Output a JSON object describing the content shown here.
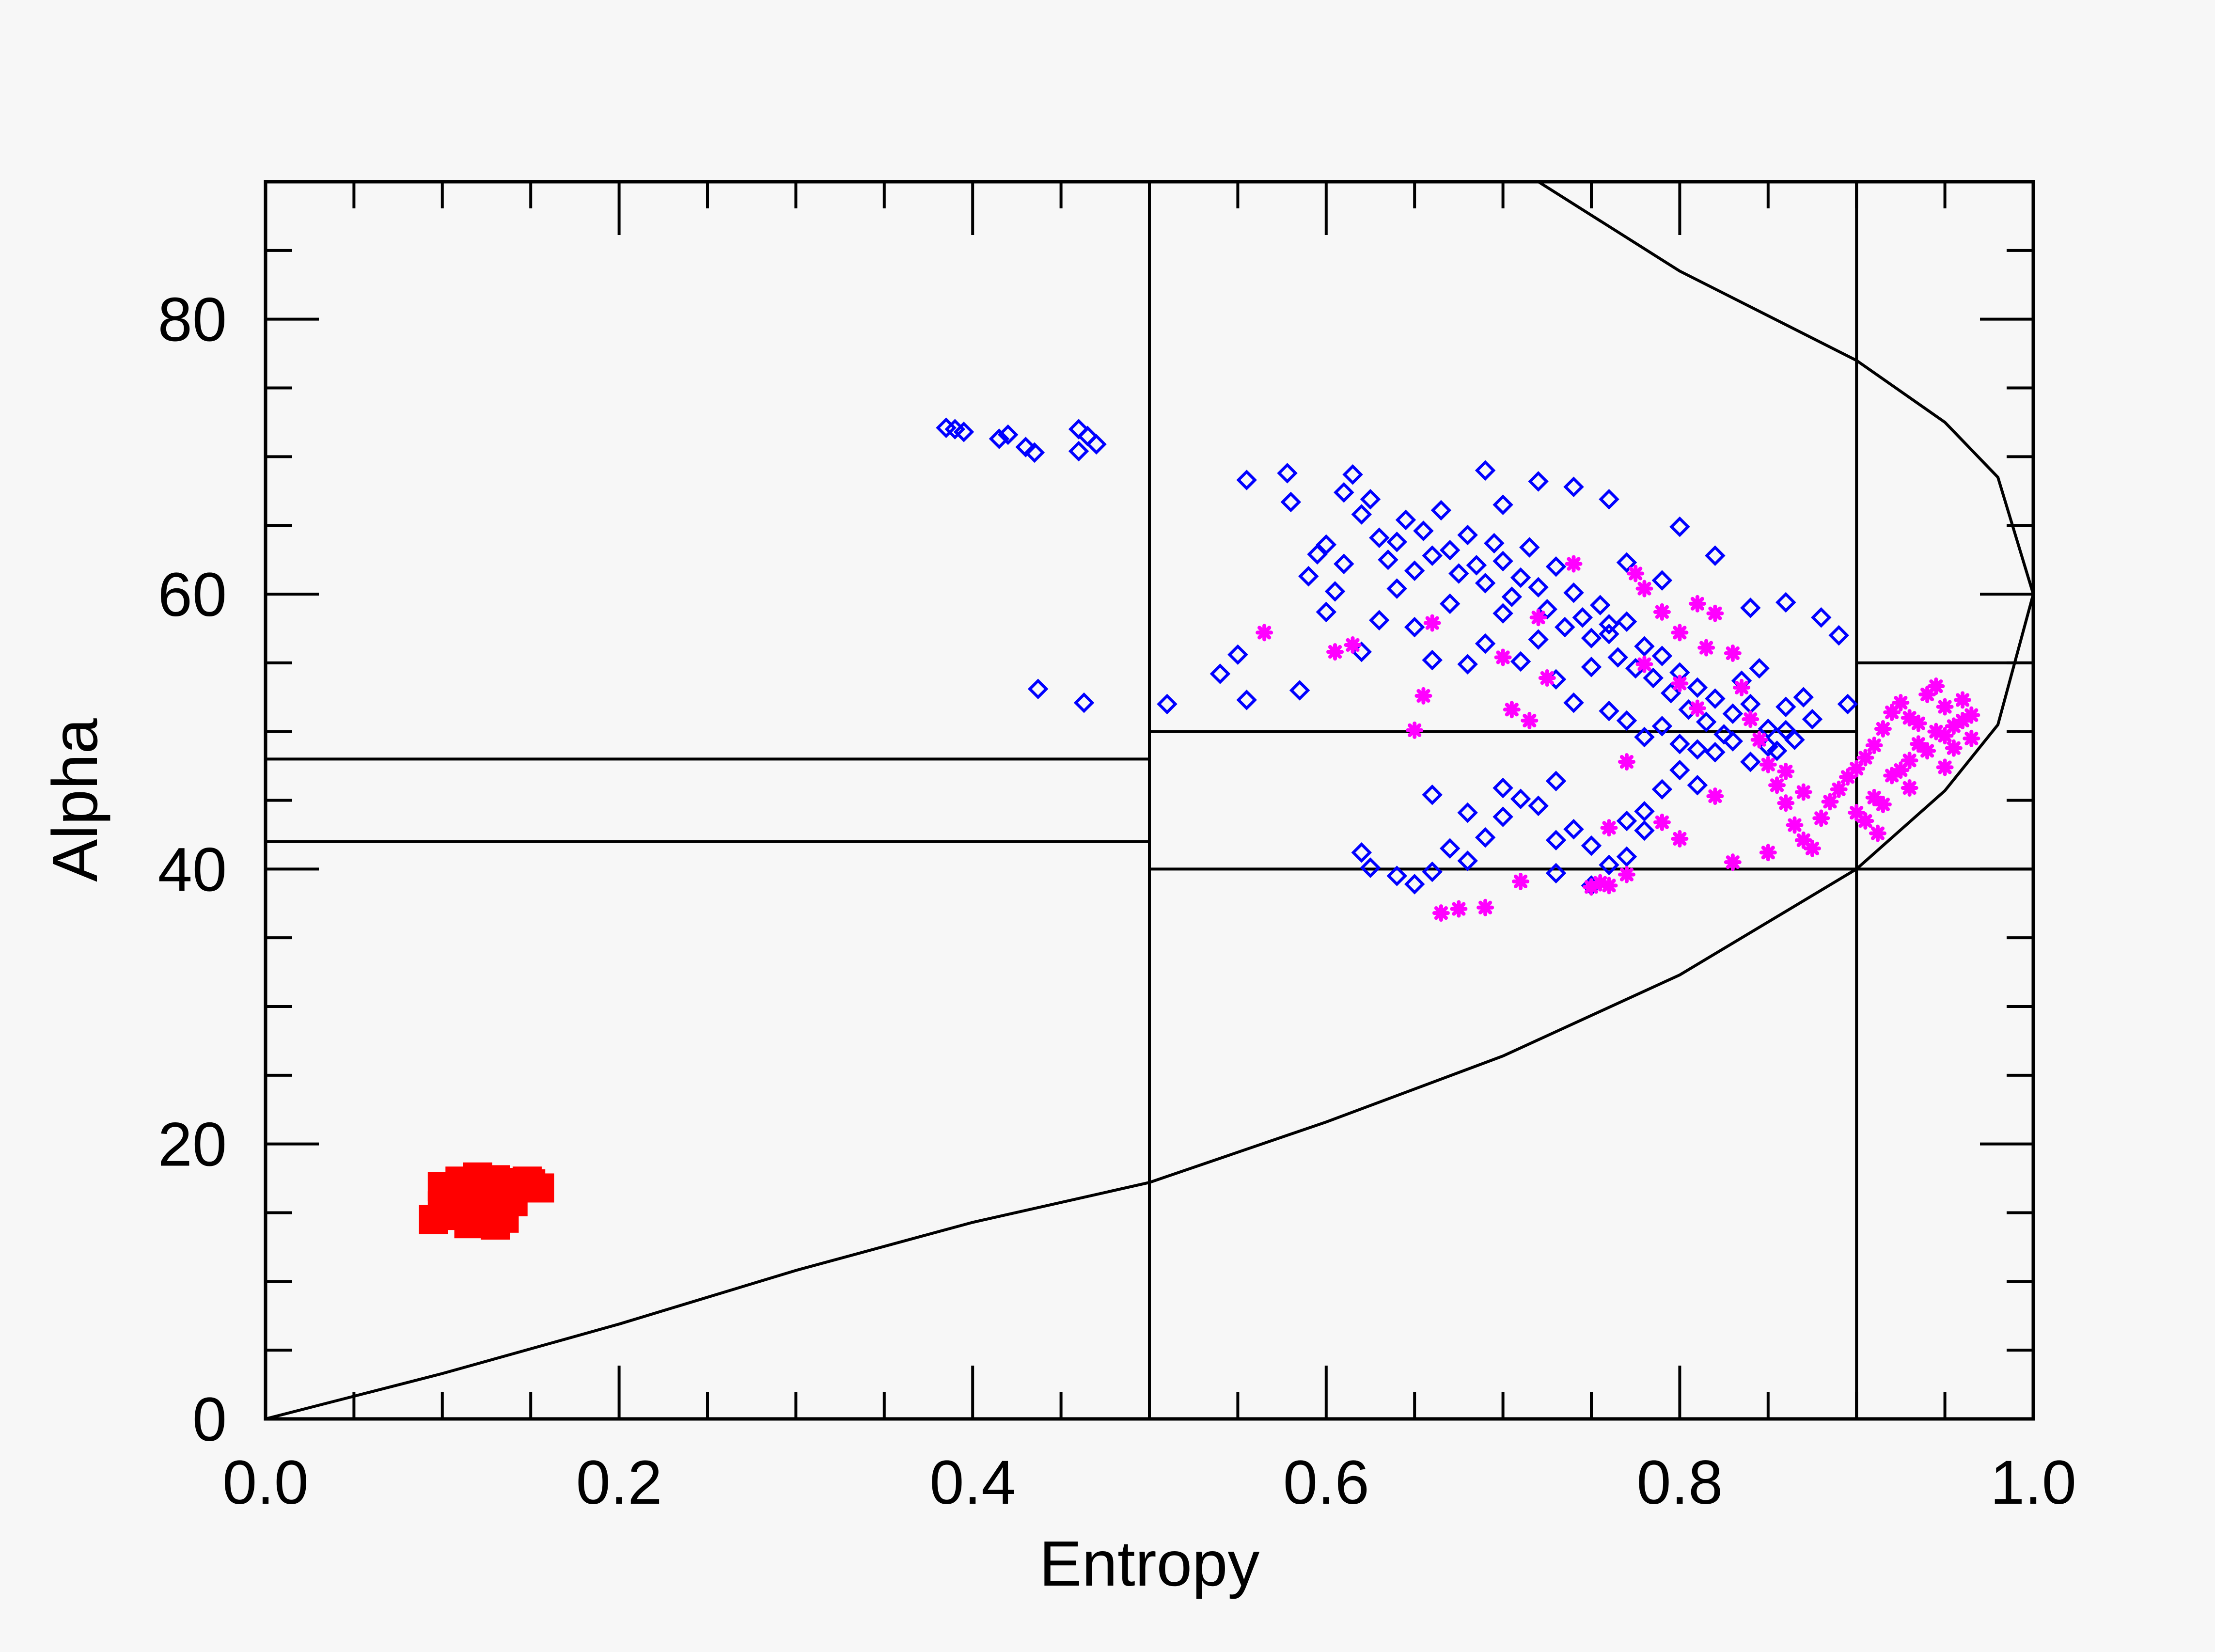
{
  "chart_data": {
    "type": "scatter",
    "title": "",
    "xlabel": "Entropy",
    "ylabel": "Alpha",
    "xlim": [
      0.0,
      1.0
    ],
    "ylim": [
      0,
      90
    ],
    "grid": false,
    "x_ticks": [
      {
        "value": 0.0,
        "label": "0.0"
      },
      {
        "value": 0.2,
        "label": "0.2"
      },
      {
        "value": 0.4,
        "label": "0.4"
      },
      {
        "value": 0.6,
        "label": "0.6"
      },
      {
        "value": 0.8,
        "label": "0.8"
      },
      {
        "value": 1.0,
        "label": "1.0"
      }
    ],
    "y_ticks": [
      {
        "value": 0,
        "label": "0"
      },
      {
        "value": 20,
        "label": "20"
      },
      {
        "value": 40,
        "label": "40"
      },
      {
        "value": 60,
        "label": "60"
      },
      {
        "value": 80,
        "label": "80"
      }
    ],
    "boundary_curve": [
      [
        0.0,
        0.0
      ],
      [
        0.1,
        3.3
      ],
      [
        0.2,
        6.9
      ],
      [
        0.3,
        10.8
      ],
      [
        0.4,
        14.3
      ],
      [
        0.5,
        17.2
      ],
      [
        0.6,
        21.6
      ],
      [
        0.7,
        26.4
      ],
      [
        0.8,
        32.3
      ],
      [
        0.9,
        40.0
      ],
      [
        0.95,
        45.7
      ],
      [
        0.98,
        50.5
      ],
      [
        1.0,
        60.0
      ],
      [
        0.98,
        68.5
      ],
      [
        0.95,
        72.5
      ],
      [
        0.9,
        77.0
      ],
      [
        0.8,
        83.5
      ],
      [
        0.72,
        90.0
      ]
    ],
    "zone_lines": {
      "vertical": [
        {
          "x": 0.5,
          "y": [
            0,
            90
          ]
        },
        {
          "x": 0.9,
          "y": [
            0,
            90
          ]
        }
      ],
      "horizontal": [
        {
          "y": 48,
          "x": [
            0.0,
            0.5
          ]
        },
        {
          "y": 42,
          "x": [
            0.0,
            0.5
          ]
        },
        {
          "y": 50,
          "x": [
            0.5,
            0.9
          ]
        },
        {
          "y": 40,
          "x": [
            0.5,
            0.9
          ]
        },
        {
          "y": 55,
          "x": [
            0.9,
            1.0
          ]
        },
        {
          "y": 40,
          "x": [
            0.9,
            1.0
          ]
        }
      ]
    },
    "series": [
      {
        "color": "#ff0000",
        "marker": "filled-square",
        "points": [
          [
            0.095,
            14.5
          ],
          [
            0.1,
            15.5
          ],
          [
            0.105,
            16.5
          ],
          [
            0.11,
            17.3
          ],
          [
            0.115,
            14.2
          ],
          [
            0.12,
            15.3
          ],
          [
            0.125,
            16.2
          ],
          [
            0.13,
            17.4
          ],
          [
            0.135,
            14.6
          ],
          [
            0.14,
            15.8
          ],
          [
            0.145,
            16.9
          ],
          [
            0.15,
            17.1
          ],
          [
            0.155,
            16.8
          ],
          [
            0.11,
            14.8
          ],
          [
            0.12,
            17.6
          ],
          [
            0.13,
            14.1
          ],
          [
            0.14,
            17.2
          ],
          [
            0.1,
            16.9
          ],
          [
            0.108,
            15.9
          ],
          [
            0.118,
            16.6
          ],
          [
            0.128,
            15.6
          ],
          [
            0.138,
            16.4
          ],
          [
            0.148,
            17.3
          ],
          [
            0.125,
            14.9
          ]
        ]
      },
      {
        "color": "#0000ff",
        "marker": "diamond",
        "points": [
          [
            0.39,
            72.0
          ],
          [
            0.395,
            71.8
          ],
          [
            0.385,
            72.1
          ],
          [
            0.415,
            71.3
          ],
          [
            0.42,
            71.6
          ],
          [
            0.43,
            70.7
          ],
          [
            0.435,
            70.3
          ],
          [
            0.46,
            72.0
          ],
          [
            0.465,
            71.5
          ],
          [
            0.47,
            70.9
          ],
          [
            0.46,
            70.4
          ],
          [
            0.437,
            53.1
          ],
          [
            0.463,
            52.1
          ],
          [
            0.51,
            52.0
          ],
          [
            0.54,
            54.2
          ],
          [
            0.55,
            55.6
          ],
          [
            0.555,
            52.3
          ],
          [
            0.555,
            68.3
          ],
          [
            0.578,
            68.8
          ],
          [
            0.58,
            66.7
          ],
          [
            0.585,
            53.0
          ],
          [
            0.59,
            61.3
          ],
          [
            0.595,
            62.9
          ],
          [
            0.6,
            63.6
          ],
          [
            0.605,
            60.2
          ],
          [
            0.61,
            67.4
          ],
          [
            0.615,
            68.7
          ],
          [
            0.62,
            65.8
          ],
          [
            0.625,
            66.9
          ],
          [
            0.63,
            64.1
          ],
          [
            0.635,
            62.5
          ],
          [
            0.64,
            63.8
          ],
          [
            0.645,
            65.4
          ],
          [
            0.65,
            61.7
          ],
          [
            0.655,
            64.6
          ],
          [
            0.66,
            62.8
          ],
          [
            0.665,
            66.1
          ],
          [
            0.67,
            63.2
          ],
          [
            0.675,
            61.5
          ],
          [
            0.68,
            64.3
          ],
          [
            0.685,
            62.1
          ],
          [
            0.69,
            60.8
          ],
          [
            0.695,
            63.7
          ],
          [
            0.7,
            62.4
          ],
          [
            0.705,
            59.8
          ],
          [
            0.71,
            61.2
          ],
          [
            0.715,
            63.4
          ],
          [
            0.72,
            60.5
          ],
          [
            0.725,
            58.9
          ],
          [
            0.73,
            62.0
          ],
          [
            0.735,
            57.6
          ],
          [
            0.74,
            60.1
          ],
          [
            0.745,
            58.3
          ],
          [
            0.75,
            56.8
          ],
          [
            0.755,
            59.2
          ],
          [
            0.76,
            57.1
          ],
          [
            0.765,
            55.4
          ],
          [
            0.77,
            58.0
          ],
          [
            0.775,
            54.6
          ],
          [
            0.78,
            56.2
          ],
          [
            0.785,
            53.9
          ],
          [
            0.79,
            55.5
          ],
          [
            0.795,
            52.8
          ],
          [
            0.8,
            54.3
          ],
          [
            0.805,
            51.6
          ],
          [
            0.81,
            53.2
          ],
          [
            0.815,
            50.7
          ],
          [
            0.82,
            52.4
          ],
          [
            0.825,
            49.8
          ],
          [
            0.83,
            51.3
          ],
          [
            0.835,
            53.7
          ],
          [
            0.84,
            52.0
          ],
          [
            0.845,
            54.6
          ],
          [
            0.85,
            50.2
          ],
          [
            0.855,
            48.6
          ],
          [
            0.86,
            51.8
          ],
          [
            0.865,
            49.4
          ],
          [
            0.87,
            52.5
          ],
          [
            0.875,
            50.9
          ],
          [
            0.89,
            57.0
          ],
          [
            0.895,
            52.0
          ],
          [
            0.88,
            58.3
          ],
          [
            0.86,
            59.4
          ],
          [
            0.84,
            59.0
          ],
          [
            0.82,
            62.8
          ],
          [
            0.8,
            64.9
          ],
          [
            0.79,
            61.0
          ],
          [
            0.77,
            62.3
          ],
          [
            0.76,
            57.8
          ],
          [
            0.75,
            54.7
          ],
          [
            0.74,
            52.1
          ],
          [
            0.73,
            53.8
          ],
          [
            0.72,
            56.7
          ],
          [
            0.71,
            55.1
          ],
          [
            0.7,
            58.6
          ],
          [
            0.69,
            56.4
          ],
          [
            0.68,
            54.9
          ],
          [
            0.67,
            59.3
          ],
          [
            0.66,
            55.2
          ],
          [
            0.65,
            57.6
          ],
          [
            0.64,
            60.4
          ],
          [
            0.63,
            58.1
          ],
          [
            0.62,
            55.8
          ],
          [
            0.61,
            62.2
          ],
          [
            0.6,
            58.7
          ],
          [
            0.62,
            41.2
          ],
          [
            0.625,
            40.1
          ],
          [
            0.64,
            39.5
          ],
          [
            0.65,
            38.9
          ],
          [
            0.66,
            39.8
          ],
          [
            0.67,
            41.5
          ],
          [
            0.68,
            40.6
          ],
          [
            0.69,
            42.3
          ],
          [
            0.7,
            43.8
          ],
          [
            0.71,
            45.1
          ],
          [
            0.72,
            44.6
          ],
          [
            0.73,
            46.4
          ],
          [
            0.74,
            42.9
          ],
          [
            0.75,
            41.7
          ],
          [
            0.76,
            40.3
          ],
          [
            0.77,
            43.5
          ],
          [
            0.78,
            44.2
          ],
          [
            0.79,
            45.8
          ],
          [
            0.8,
            47.2
          ],
          [
            0.81,
            46.1
          ],
          [
            0.82,
            48.5
          ],
          [
            0.83,
            49.3
          ],
          [
            0.84,
            47.8
          ],
          [
            0.85,
            48.9
          ],
          [
            0.86,
            50.1
          ],
          [
            0.76,
            51.5
          ],
          [
            0.77,
            50.8
          ],
          [
            0.78,
            49.6
          ],
          [
            0.79,
            50.4
          ],
          [
            0.8,
            49.1
          ],
          [
            0.81,
            48.7
          ],
          [
            0.69,
            69.0
          ],
          [
            0.7,
            66.5
          ],
          [
            0.72,
            68.2
          ],
          [
            0.74,
            67.8
          ],
          [
            0.76,
            66.9
          ],
          [
            0.66,
            45.4
          ],
          [
            0.68,
            44.1
          ],
          [
            0.7,
            45.9
          ],
          [
            0.73,
            39.7
          ],
          [
            0.75,
            38.8
          ],
          [
            0.77,
            40.9
          ],
          [
            0.78,
            42.8
          ],
          [
            0.73,
            42.1
          ]
        ]
      },
      {
        "color": "#ff00ff",
        "marker": "asterisk",
        "points": [
          [
            0.565,
            57.2
          ],
          [
            0.605,
            55.8
          ],
          [
            0.615,
            56.3
          ],
          [
            0.655,
            52.6
          ],
          [
            0.66,
            57.9
          ],
          [
            0.665,
            36.8
          ],
          [
            0.675,
            37.1
          ],
          [
            0.69,
            37.2
          ],
          [
            0.705,
            51.6
          ],
          [
            0.71,
            39.1
          ],
          [
            0.715,
            50.8
          ],
          [
            0.725,
            53.9
          ],
          [
            0.74,
            62.2
          ],
          [
            0.75,
            38.7
          ],
          [
            0.755,
            39.0
          ],
          [
            0.76,
            38.8
          ],
          [
            0.77,
            39.6
          ],
          [
            0.775,
            61.5
          ],
          [
            0.78,
            60.4
          ],
          [
            0.79,
            58.7
          ],
          [
            0.8,
            57.2
          ],
          [
            0.81,
            59.3
          ],
          [
            0.815,
            56.1
          ],
          [
            0.82,
            58.6
          ],
          [
            0.83,
            55.7
          ],
          [
            0.835,
            53.2
          ],
          [
            0.84,
            50.9
          ],
          [
            0.845,
            49.4
          ],
          [
            0.85,
            47.6
          ],
          [
            0.855,
            46.1
          ],
          [
            0.86,
            44.8
          ],
          [
            0.865,
            43.2
          ],
          [
            0.87,
            42.1
          ],
          [
            0.875,
            41.5
          ],
          [
            0.88,
            43.7
          ],
          [
            0.885,
            44.9
          ],
          [
            0.89,
            45.8
          ],
          [
            0.895,
            46.7
          ],
          [
            0.9,
            47.3
          ],
          [
            0.905,
            48.1
          ],
          [
            0.91,
            49.0
          ],
          [
            0.915,
            50.2
          ],
          [
            0.92,
            51.4
          ],
          [
            0.925,
            52.1
          ],
          [
            0.93,
            51.0
          ],
          [
            0.935,
            50.6
          ],
          [
            0.94,
            52.7
          ],
          [
            0.945,
            53.3
          ],
          [
            0.95,
            51.8
          ],
          [
            0.955,
            50.4
          ],
          [
            0.96,
            52.3
          ],
          [
            0.965,
            51.2
          ],
          [
            0.91,
            45.2
          ],
          [
            0.92,
            46.8
          ],
          [
            0.93,
            47.9
          ],
          [
            0.94,
            48.6
          ],
          [
            0.95,
            49.7
          ],
          [
            0.96,
            50.8
          ],
          [
            0.9,
            44.1
          ],
          [
            0.905,
            43.5
          ],
          [
            0.915,
            44.7
          ],
          [
            0.925,
            47.2
          ],
          [
            0.935,
            49.1
          ],
          [
            0.945,
            50.0
          ],
          [
            0.955,
            48.8
          ],
          [
            0.965,
            49.5
          ],
          [
            0.912,
            42.6
          ],
          [
            0.93,
            45.9
          ],
          [
            0.95,
            47.4
          ],
          [
            0.87,
            45.6
          ],
          [
            0.86,
            47.1
          ],
          [
            0.85,
            41.2
          ],
          [
            0.8,
            42.2
          ],
          [
            0.79,
            43.4
          ],
          [
            0.83,
            40.5
          ],
          [
            0.82,
            45.3
          ],
          [
            0.81,
            51.7
          ],
          [
            0.8,
            53.5
          ],
          [
            0.78,
            54.9
          ],
          [
            0.77,
            47.8
          ],
          [
            0.76,
            43.0
          ],
          [
            0.72,
            58.3
          ],
          [
            0.65,
            50.1
          ],
          [
            0.7,
            55.4
          ]
        ]
      }
    ]
  }
}
